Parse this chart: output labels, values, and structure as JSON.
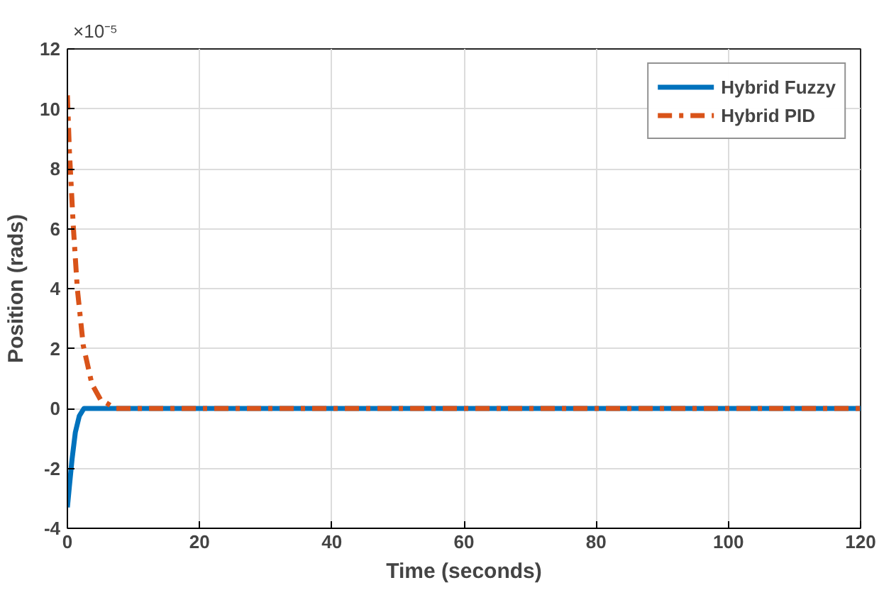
{
  "chart_data": {
    "type": "line",
    "xlabel": "Time (seconds)",
    "ylabel": "Position (rads)",
    "annotations": [
      "×10⁻⁵"
    ],
    "xlim": [
      0,
      120
    ],
    "xticks": [
      0,
      20,
      40,
      60,
      80,
      100,
      120
    ],
    "ylim": [
      -4,
      12
    ],
    "yticks": [
      -4,
      -2,
      0,
      2,
      4,
      6,
      8,
      10,
      12
    ],
    "grid": true,
    "legend": "top right",
    "series": [
      {
        "name": "Hybrid Fuzzy",
        "color": "#0072bd",
        "line_style": "solid",
        "x": [
          0,
          0.3,
          0.7,
          1.2,
          1.8,
          2.5,
          4,
          10,
          30,
          60,
          90,
          120
        ],
        "values": [
          -3.3,
          -2.6,
          -1.7,
          -0.8,
          -0.25,
          0,
          0,
          0,
          0,
          0,
          0,
          0
        ]
      },
      {
        "name": "Hybrid PID",
        "color": "#d95319",
        "line_style": "dashed",
        "x": [
          0,
          0.3,
          0.9,
          1.5,
          2.4,
          3.7,
          5,
          7.3,
          10,
          30,
          60,
          90,
          120
        ],
        "values": [
          10.45,
          8.6,
          6.05,
          4.0,
          2.1,
          0.82,
          0.3,
          0,
          0,
          0,
          0,
          0,
          0
        ]
      }
    ]
  }
}
